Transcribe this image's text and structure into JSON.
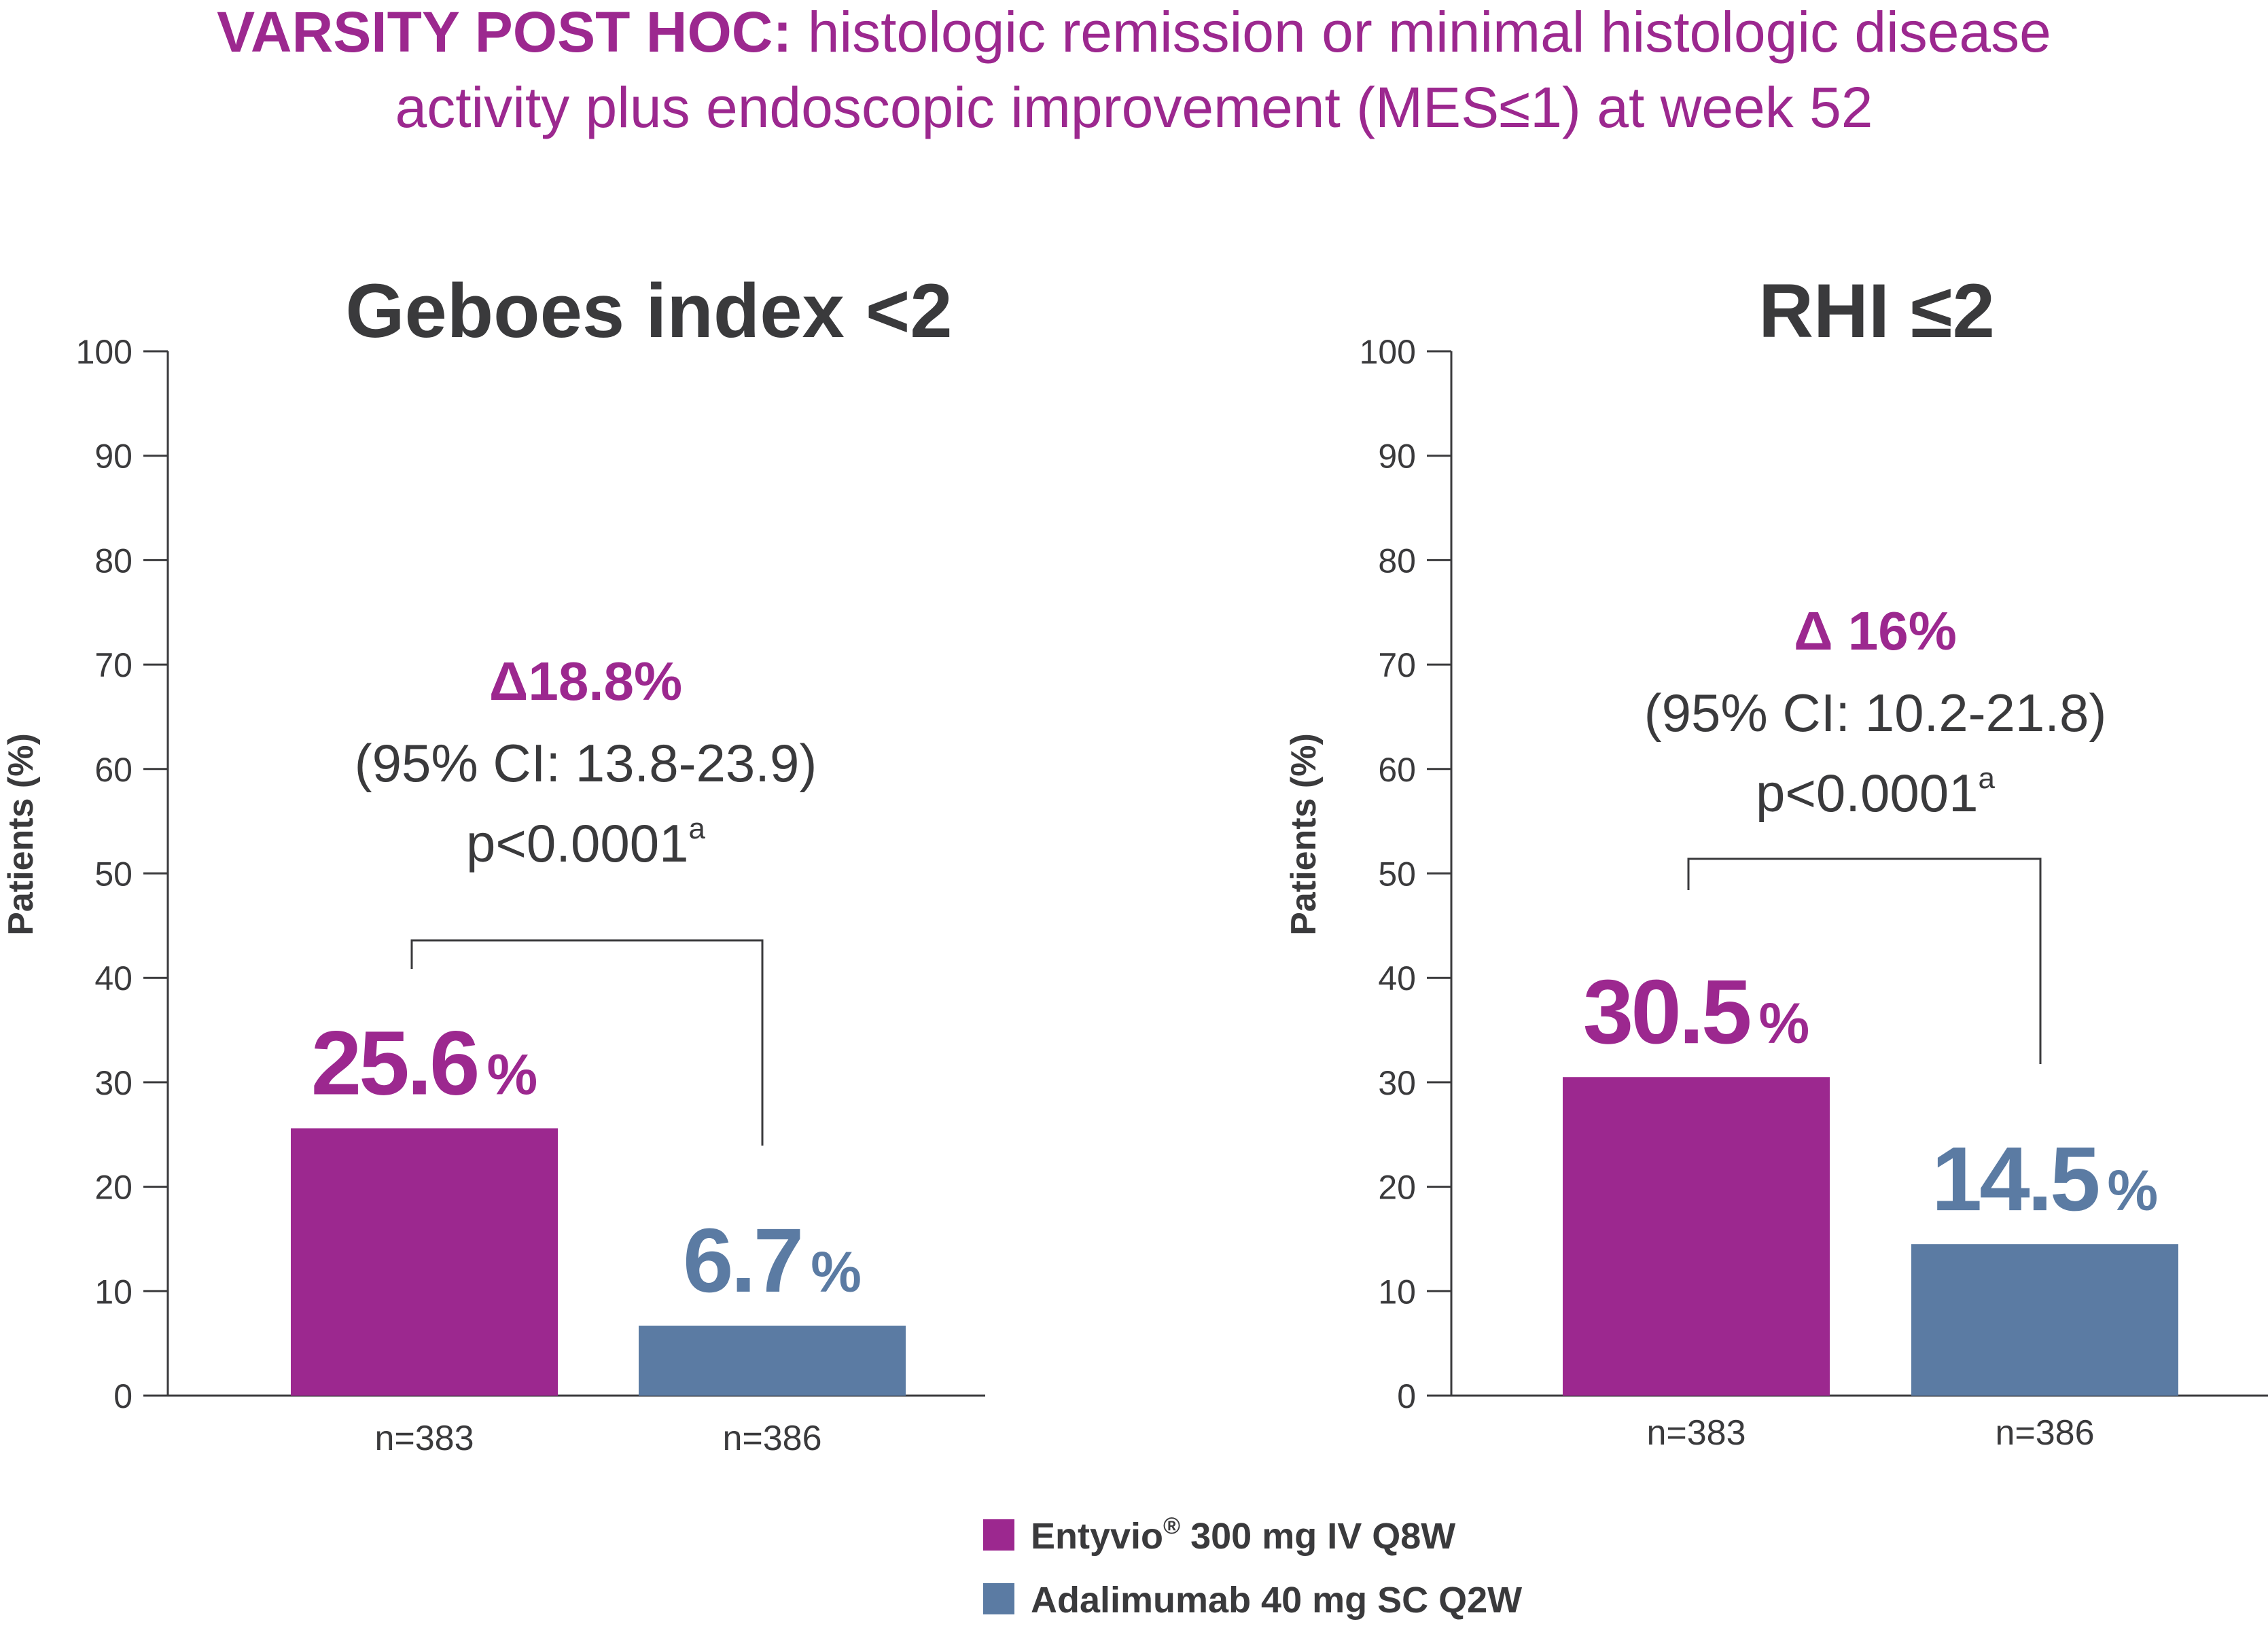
{
  "title": {
    "bold_part": "VARSITY POST HOC:",
    "line1_rest": " histologic remission or minimal histologic disease",
    "line2": "activity plus endoscopic improvement (MES≤1) at week 52"
  },
  "colors": {
    "entyvio": "#9c288f",
    "adalimumab": "#5b7ba3",
    "text": "#3a3a3c",
    "axis": "#3a3a3c"
  },
  "chart_data": [
    {
      "type": "bar",
      "title": "Geboes index <2",
      "ylabel": "Patients (%)",
      "ylim": [
        0,
        100
      ],
      "yticks": [
        0,
        10,
        20,
        30,
        40,
        50,
        60,
        70,
        80,
        90,
        100
      ],
      "categories": [
        "n=383",
        "n=386"
      ],
      "series_names": [
        "Entyvio® 300 mg IV Q8W",
        "Adalimumab 40 mg SC Q2W"
      ],
      "values": [
        25.6,
        6.7
      ],
      "value_labels": [
        "25.6",
        "6.7"
      ],
      "value_unit": "%",
      "annotation": {
        "delta": "Δ18.8%",
        "ci": "(95% CI: 13.8-23.9)",
        "p": "p<0.0001",
        "p_sup": "a"
      }
    },
    {
      "type": "bar",
      "title": "RHI ≤2",
      "ylabel": "Patients (%)",
      "ylim": [
        0,
        100
      ],
      "yticks": [
        0,
        10,
        20,
        30,
        40,
        50,
        60,
        70,
        80,
        90,
        100
      ],
      "categories": [
        "n=383",
        "n=386"
      ],
      "series_names": [
        "Entyvio® 300 mg IV Q8W",
        "Adalimumab 40 mg SC Q2W"
      ],
      "values": [
        30.5,
        14.5
      ],
      "value_labels": [
        "30.5",
        "14.5"
      ],
      "value_unit": "%",
      "annotation": {
        "delta": "Δ 16%",
        "ci": "(95% CI: 10.2-21.8)",
        "p": "p<0.0001",
        "p_sup": "a"
      }
    }
  ],
  "legend": {
    "position": "bottom-center",
    "items": [
      {
        "name_main": "Entyvio",
        "name_sup": "®",
        "name_rest": " 300 mg IV Q8W",
        "color_key": "entyvio"
      },
      {
        "name_main": "Adalimumab 40 mg SC Q2W",
        "name_sup": "",
        "name_rest": "",
        "color_key": "adalimumab"
      }
    ]
  }
}
